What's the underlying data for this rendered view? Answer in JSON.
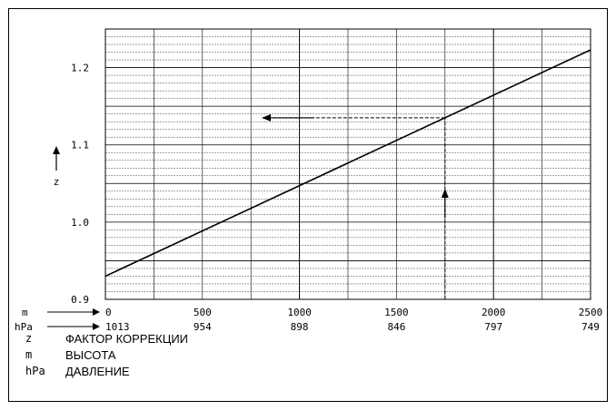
{
  "chart_data": {
    "type": "line",
    "y_axis": {
      "label": "z",
      "ylim": [
        0.9,
        1.25
      ],
      "ticks": [
        0.9,
        1.0,
        1.1,
        1.2
      ],
      "tick_labels": [
        "0.9",
        "1.0",
        "1.1",
        "1.2"
      ]
    },
    "x_axis": {
      "xlim": [
        0,
        2500
      ],
      "m_label": "m",
      "hpa_label": "hPa",
      "m_ticks": [
        "0",
        "500",
        "1000",
        "1500",
        "2000",
        "2500"
      ],
      "hpa_ticks": [
        "1013",
        "954",
        "898",
        "846",
        "797",
        "749"
      ]
    },
    "series": [
      {
        "x": [
          0,
          2500
        ],
        "y": [
          0.93,
          1.223
        ]
      }
    ],
    "example": {
      "x": 1750,
      "y": 1.135
    },
    "grid": true
  },
  "legend": {
    "items": [
      {
        "key": "z",
        "text": "ФАКТОР КОРРЕКЦИИ"
      },
      {
        "key": "m",
        "text": "ВЫСОТА"
      },
      {
        "key": "hPa",
        "text": "ДАВЛЕНИЕ"
      }
    ]
  }
}
